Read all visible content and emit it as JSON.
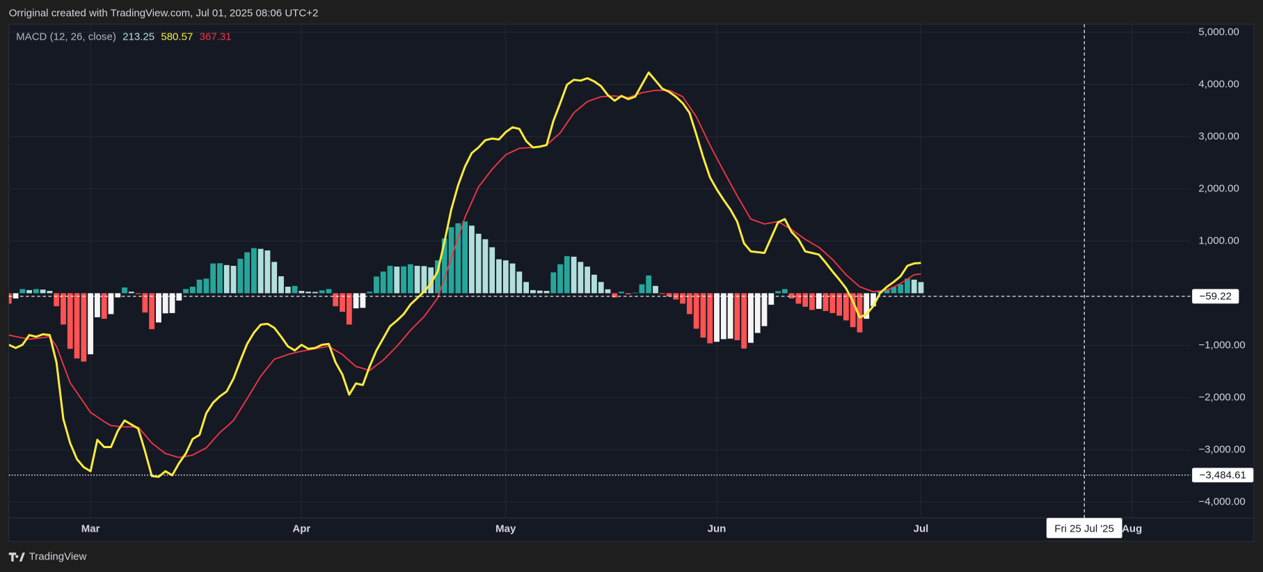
{
  "header": {
    "text": "Orriginal created with TradingView.com, Jul 01, 2025 08:06 UTC+2"
  },
  "footer": {
    "brand": "TradingView"
  },
  "chart_data": {
    "type": "macd",
    "legend": {
      "title": "MACD (12, 26, close)"
    },
    "xlim": [
      0,
      173.6
    ],
    "xticks": [
      {
        "value": 12,
        "label": "Mar"
      },
      {
        "value": 43,
        "label": "Apr"
      },
      {
        "value": 73,
        "label": "May"
      },
      {
        "value": 104,
        "label": "Jun"
      },
      {
        "value": 134,
        "label": "Jul"
      },
      {
        "value": 165,
        "label": "Aug"
      }
    ],
    "ylim": [
      -4306,
      5154
    ],
    "yticks": [
      {
        "value": 5000,
        "label": "5,000.00"
      },
      {
        "value": 4000,
        "label": "4,000.00"
      },
      {
        "value": 3000,
        "label": "3,000.00"
      },
      {
        "value": 2000,
        "label": "2,000.00"
      },
      {
        "value": 1000,
        "label": "1,000.00"
      },
      {
        "value": -1000,
        "label": "−1,000.00"
      },
      {
        "value": -2000,
        "label": "−2,000.00"
      },
      {
        "value": -3000,
        "label": "−3,000.00"
      },
      {
        "value": -4000,
        "label": "−4,000.00"
      }
    ],
    "grid": true,
    "price_lines": [
      {
        "value": -59.22,
        "label": "−59.22",
        "style": "dashed"
      },
      {
        "value": -3484.61,
        "label": "−3,484.61",
        "style": "dotted"
      }
    ],
    "crosshair": {
      "x": 158,
      "label": "Fri 25 Jul '25"
    },
    "histogram": {
      "colors": {
        "positive_rising": "#26a69a",
        "positive_falling": "#b2dfdb",
        "negative_rising": "#f5f5f5",
        "negative_falling": "#ff5252"
      },
      "values": [
        -200,
        -100,
        80,
        60,
        80,
        70,
        45,
        -250,
        -600,
        -1065,
        -1250,
        -1310,
        -1170,
        -460,
        -490,
        -400,
        -80,
        110,
        30,
        -15,
        -370,
        -690,
        -560,
        -385,
        -380,
        -140,
        80,
        125,
        260,
        280,
        570,
        575,
        540,
        525,
        660,
        785,
        865,
        850,
        820,
        600,
        325,
        125,
        140,
        45,
        30,
        25,
        55,
        80,
        -250,
        -355,
        -600,
        -290,
        -280,
        30,
        320,
        415,
        525,
        510,
        515,
        555,
        525,
        520,
        495,
        630,
        1050,
        1265,
        1340,
        1375,
        1295,
        1140,
        1035,
        880,
        650,
        630,
        570,
        415,
        215,
        60,
        50,
        45,
        400,
        555,
        710,
        700,
        600,
        510,
        355,
        215,
        75,
        -80,
        30,
        -20,
        10,
        170,
        340,
        140,
        -15,
        -60,
        -120,
        -200,
        -400,
        -680,
        -850,
        -960,
        -930,
        -880,
        -870,
        -900,
        -1060,
        -950,
        -760,
        -630,
        -220,
        40,
        80,
        -100,
        -200,
        -260,
        -320,
        -300,
        -340,
        -380,
        -430,
        -520,
        -650,
        -750,
        -490,
        -250,
        40,
        80,
        120,
        170,
        280,
        260,
        213.25
      ]
    },
    "macd": {
      "color": "#ffeb3b",
      "values": [
        -988,
        -1049,
        -988,
        -802,
        -833,
        -787,
        -802,
        -1327,
        -2407,
        -2870,
        -3179,
        -3333,
        -3410,
        -2808,
        -2947,
        -2947,
        -2639,
        -2438,
        -2515,
        -2592,
        -3024,
        -3503,
        -3518,
        -3410,
        -3487,
        -3256,
        -3071,
        -2793,
        -2716,
        -2299,
        -2098,
        -1975,
        -1882,
        -1635,
        -1296,
        -972,
        -756,
        -602,
        -586,
        -663,
        -833,
        -1018,
        -1096,
        -988,
        -1065,
        -1049,
        -988,
        -972,
        -1327,
        -1558,
        -1944,
        -1728,
        -1759,
        -1404,
        -1096,
        -864,
        -633,
        -525,
        -401,
        -216,
        -93,
        31,
        185,
        417,
        988,
        1605,
        2068,
        2423,
        2685,
        2793,
        2932,
        2963,
        2947,
        3086,
        3179,
        3148,
        2916,
        2793,
        2808,
        2839,
        3302,
        3641,
        3996,
        4089,
        4074,
        4120,
        4058,
        3966,
        3796,
        3688,
        3780,
        3719,
        3765,
        3996,
        4228,
        4074,
        3919,
        3858,
        3765,
        3641,
        3456,
        3040,
        2608,
        2222,
        1990,
        1790,
        1605,
        1373,
        957,
        802,
        787,
        772,
        1065,
        1358,
        1420,
        1173,
        1034,
        802,
        772,
        741,
        586,
        417,
        262,
        93,
        -154,
        -463,
        -401,
        -247,
        5,
        123,
        216,
        324,
        525,
        571,
        580.57
      ]
    },
    "signal": {
      "color": "#f23645",
      "values": [
        -802,
        -830,
        -855,
        -880,
        -865,
        -850,
        -833,
        -1018,
        -1365,
        -1713,
        -1903,
        -2093,
        -2284,
        -2370,
        -2460,
        -2535,
        -2550,
        -2561,
        -2561,
        -2565,
        -2715,
        -2870,
        -2970,
        -3071,
        -3110,
        -3148,
        -3125,
        -3101,
        -3030,
        -2963,
        -2815,
        -2669,
        -2555,
        -2438,
        -2230,
        -2021,
        -1805,
        -1589,
        -1425,
        -1265,
        -1220,
        -1173,
        -1140,
        -1111,
        -1088,
        -1065,
        -1040,
        -1018,
        -1095,
        -1173,
        -1290,
        -1404,
        -1440,
        -1481,
        -1380,
        -1281,
        -1150,
        -1018,
        -865,
        -710,
        -580,
        -447,
        -270,
        -93,
        290,
        679,
        1065,
        1450,
        1745,
        2037,
        2205,
        2376,
        2515,
        2654,
        2715,
        2777,
        2785,
        2793,
        2815,
        2839,
        2955,
        3071,
        3265,
        3456,
        3565,
        3672,
        3720,
        3765,
        3772,
        3780,
        3765,
        3749,
        3795,
        3842,
        3865,
        3888,
        3888,
        3888,
        3828,
        3765,
        3572,
        3379,
        3110,
        2839,
        2590,
        2345,
        2105,
        1867,
        1645,
        1420,
        1375,
        1327,
        1350,
        1373,
        1296,
        1219,
        1125,
        1034,
        955,
        880,
        765,
        648,
        500,
        355,
        240,
        123,
        75,
        31,
        45,
        62,
        120,
        185,
        270,
        355,
        367.31
      ]
    }
  }
}
